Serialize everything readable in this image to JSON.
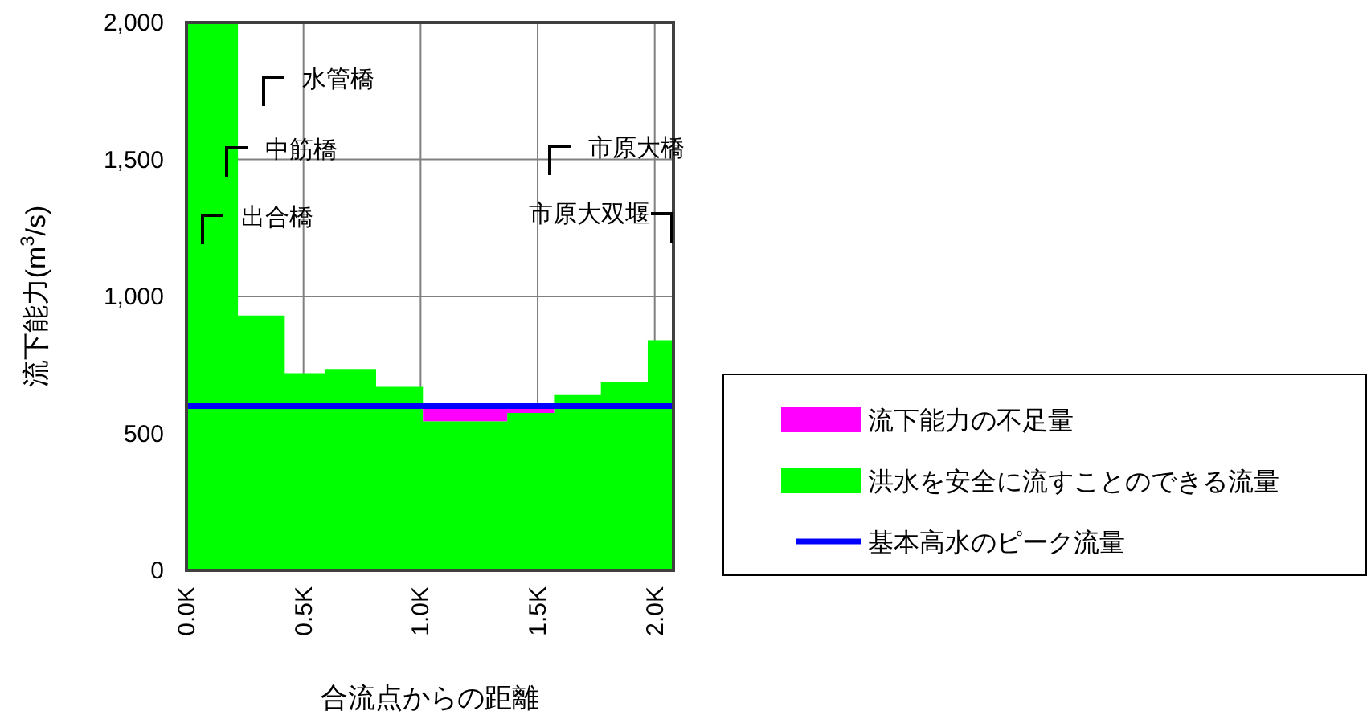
{
  "chart_data": {
    "type": "area",
    "stacked": true,
    "xlabel": "合流点からの距離",
    "ylabel": "流下能力(m$^{3}$/s)",
    "x": [
      0,
      0.22,
      0.22,
      0.42,
      0.42,
      0.59,
      0.59,
      0.81,
      0.81,
      1.01,
      1.01,
      1.37,
      1.37,
      1.57,
      1.57,
      1.77,
      1.77,
      1.97,
      1.97,
      2.08
    ],
    "series": [
      {
        "name": "洪水を安全に流すことのできる流量",
        "color": "#00ff00",
        "values": [
          2000,
          2000,
          930,
          930,
          720,
          720,
          735,
          735,
          670,
          670,
          545,
          545,
          575,
          575,
          640,
          640,
          686,
          686,
          840,
          840
        ]
      },
      {
        "name": "流下能力の不足量",
        "color": "#ff00ff",
        "values": [
          null,
          null,
          null,
          null,
          null,
          null,
          null,
          null,
          null,
          null,
          65,
          65,
          35,
          35,
          null,
          null,
          null,
          null,
          null,
          null
        ]
      }
    ],
    "ref_lines": [
      {
        "axis": "y",
        "value": 600,
        "label": "基本高水のピーク流量",
        "color": "#0000ff"
      }
    ],
    "xlim": [
      0,
      2.08
    ],
    "ylim": [
      0,
      2000
    ],
    "xticks": [
      {
        "value": 0,
        "label": "0.0K"
      },
      {
        "value": 0.5,
        "label": "0.5K"
      },
      {
        "value": 1,
        "label": "1.0K"
      },
      {
        "value": 1.5,
        "label": "1.5K"
      },
      {
        "value": 2,
        "label": "2.0K"
      }
    ],
    "yticks": [
      0,
      500,
      {
        "value": 1000,
        "label": "1,000"
      },
      {
        "value": 1500,
        "label": "1,500"
      },
      {
        "value": 2000,
        "label": "2,000"
      }
    ],
    "grid": true,
    "legend": "right",
    "annotations": [
      "出合橋",
      "中筋橋",
      "水管橋",
      "市原大橋",
      "市原大双堰"
    ]
  }
}
